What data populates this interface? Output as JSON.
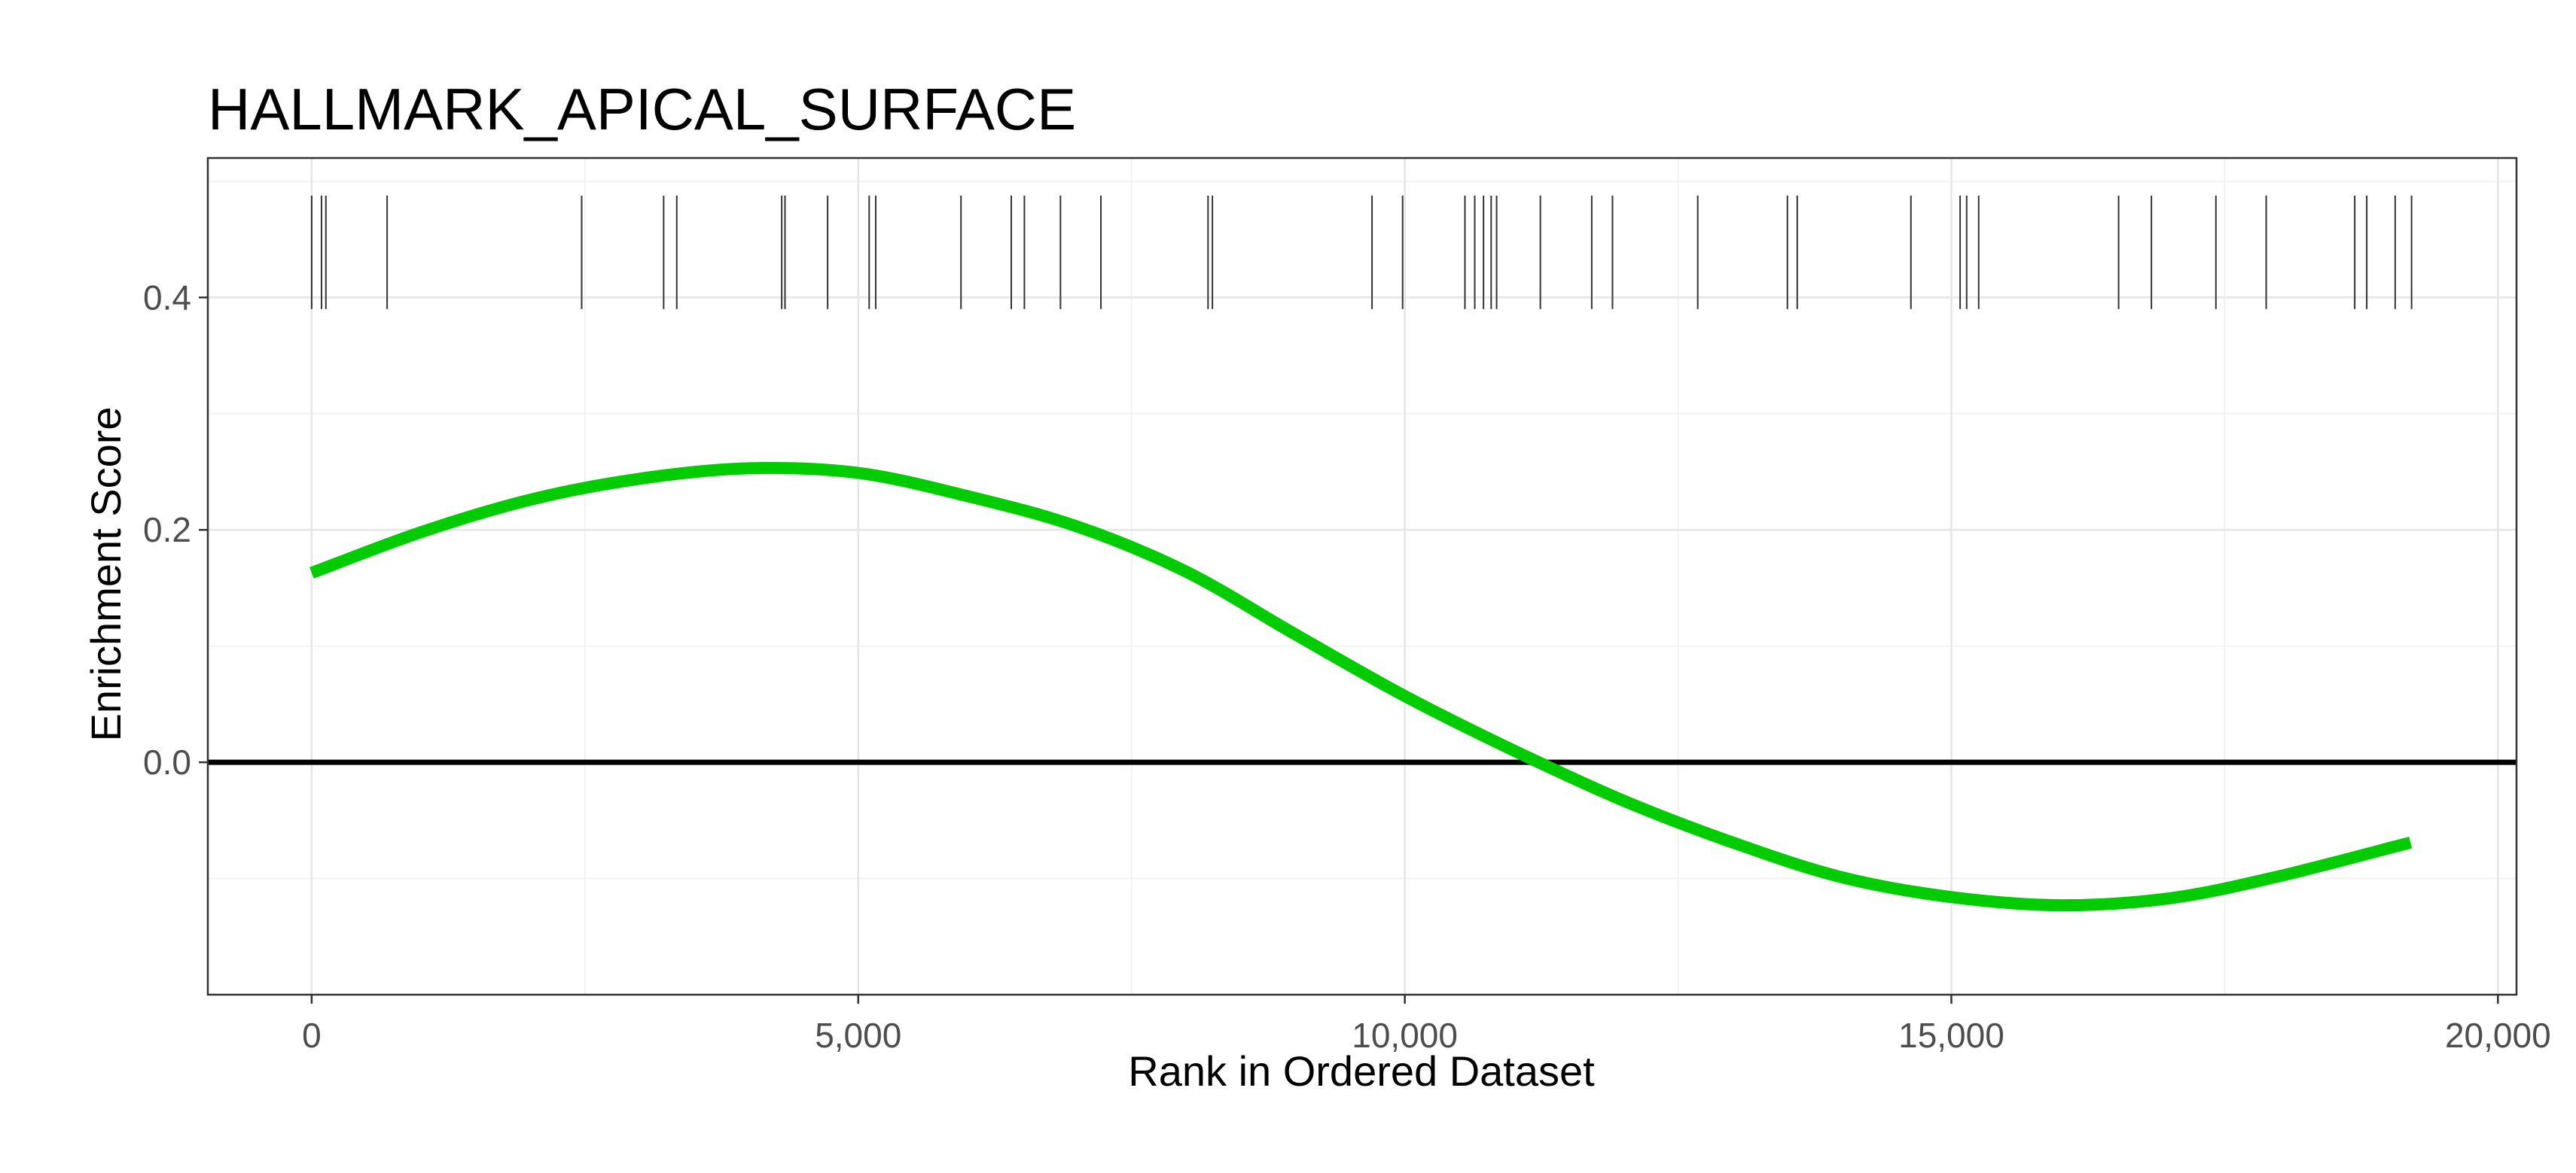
{
  "chart_data": {
    "type": "line",
    "title": "HALLMARK_APICAL_SURFACE",
    "xlabel": "Rank in Ordered Dataset",
    "ylabel": "Enrichment Score",
    "xlim": [
      -950,
      20170
    ],
    "ylim": [
      -0.2,
      0.52
    ],
    "x_ticks": [
      0,
      5000,
      10000,
      15000,
      20000
    ],
    "x_tick_labels": [
      "0",
      "5,000",
      "10,000",
      "15,000",
      "20,000"
    ],
    "y_ticks": [
      0.0,
      0.2,
      0.4
    ],
    "y_tick_labels": [
      "0.0",
      "0.2",
      "0.4"
    ],
    "grid": true,
    "reference_line_y": 0,
    "series": [
      {
        "color": "#00cc00",
        "x": [
          0,
          1000,
          2000,
          3000,
          4000,
          5000,
          6000,
          7000,
          8000,
          9000,
          10000,
          11000,
          12000,
          13000,
          14000,
          15000,
          16000,
          17000,
          18000,
          19200
        ],
        "y": [
          0.163,
          0.198,
          0.226,
          0.244,
          0.253,
          0.249,
          0.229,
          0.203,
          0.164,
          0.11,
          0.057,
          0.01,
          -0.033,
          -0.069,
          -0.099,
          -0.116,
          -0.123,
          -0.117,
          -0.098,
          -0.069
        ]
      }
    ],
    "gene_hits": [
      0,
      90,
      130,
      690,
      2470,
      3220,
      3340,
      4300,
      4330,
      4720,
      5100,
      5160,
      5940,
      6400,
      6520,
      6850,
      7220,
      8200,
      8240,
      9700,
      9980,
      10550,
      10640,
      10720,
      10790,
      10840,
      11240,
      11710,
      11900,
      12680,
      13500,
      13590,
      14630,
      15080,
      15140,
      15250,
      16530,
      16830,
      17420,
      17880,
      18690,
      18800,
      19060,
      19210
    ]
  }
}
